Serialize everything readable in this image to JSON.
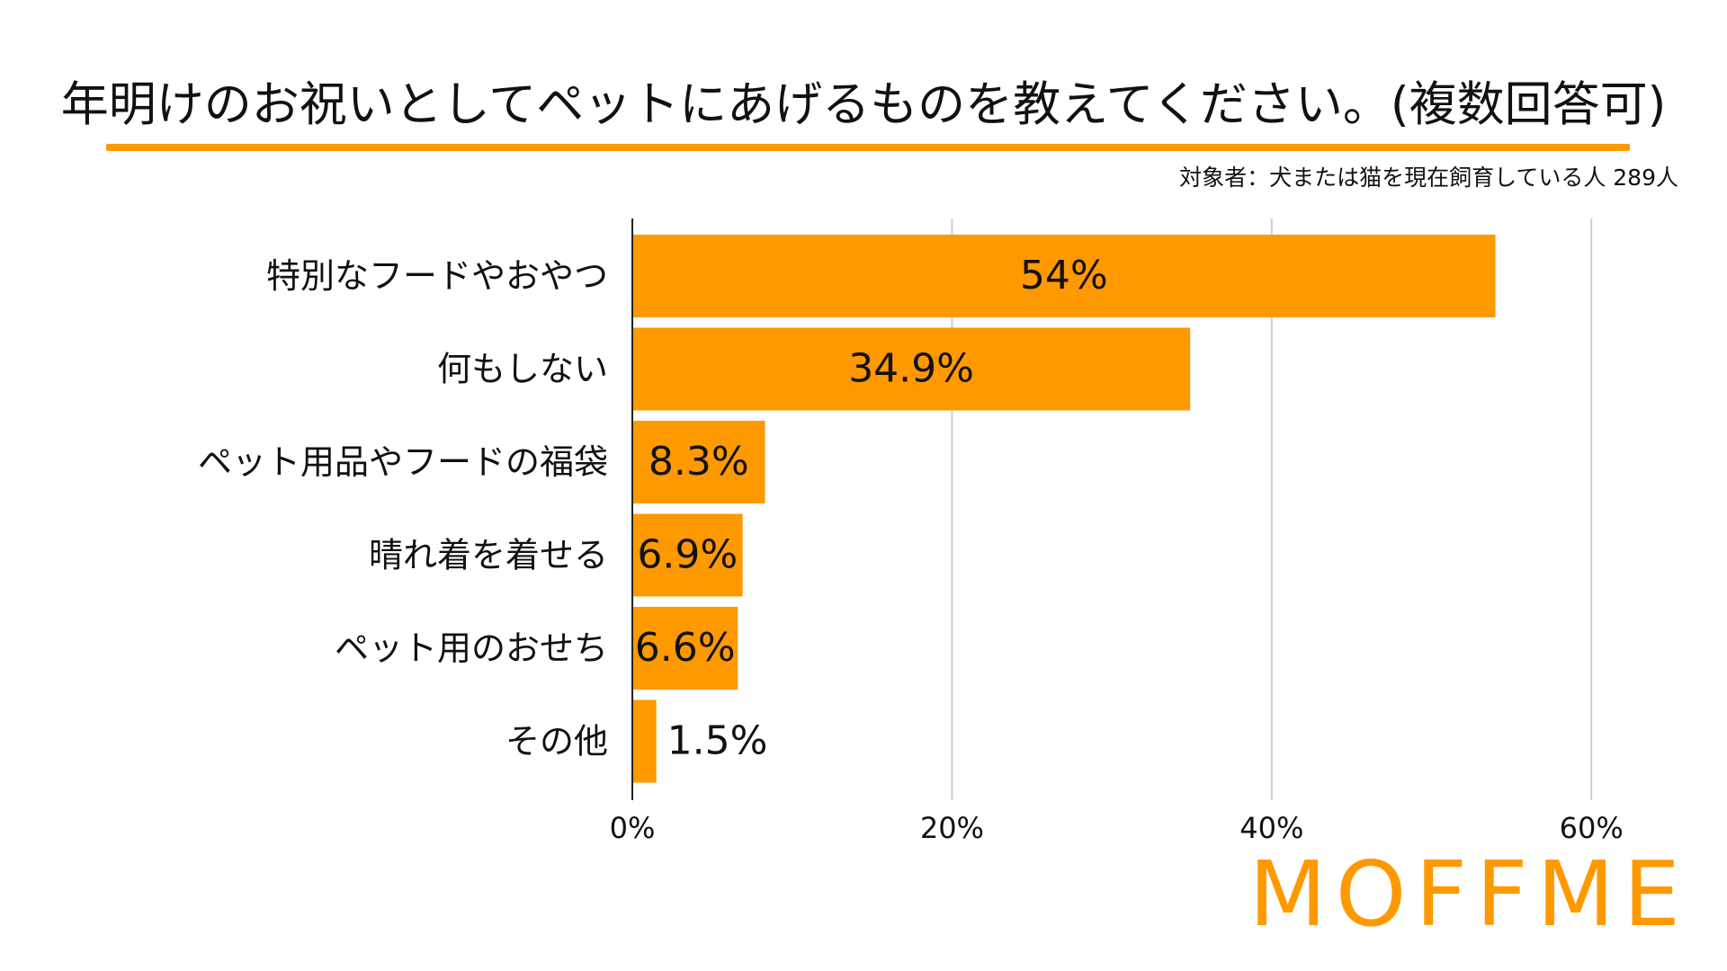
{
  "title": "年明けのお祝いとしてペットにあげるものを教えてください。(複数回答可)",
  "subtitle": "対象者：犬または猫を現在飼育している人 289人",
  "logo": "MOFFME",
  "colors": {
    "accent": "#FF9900",
    "grid": "#CFCFCF",
    "axis": "#222222",
    "text": "#111111"
  },
  "chart_data": {
    "type": "bar",
    "orientation": "horizontal",
    "categories": [
      "特別なフードやおやつ",
      "何もしない",
      "ペット用品やフードの福袋",
      "晴れ着を着せる",
      "ペット用のおせち",
      "その他"
    ],
    "values": [
      54,
      34.9,
      8.3,
      6.9,
      6.6,
      1.5
    ],
    "value_labels": [
      "54%",
      "34.9%",
      "8.3%",
      "6.9%",
      "6.6%",
      "1.5%"
    ],
    "title": "年明けのお祝いとしてペットにあげるものを教えてください。(複数回答可)",
    "xlabel": "",
    "ylabel": "",
    "xlim": [
      0,
      65
    ],
    "xticks": [
      0,
      20,
      40,
      60
    ],
    "xtick_labels": [
      "0%",
      "20%",
      "40%",
      "60%"
    ],
    "grid": true,
    "legend": "none"
  }
}
